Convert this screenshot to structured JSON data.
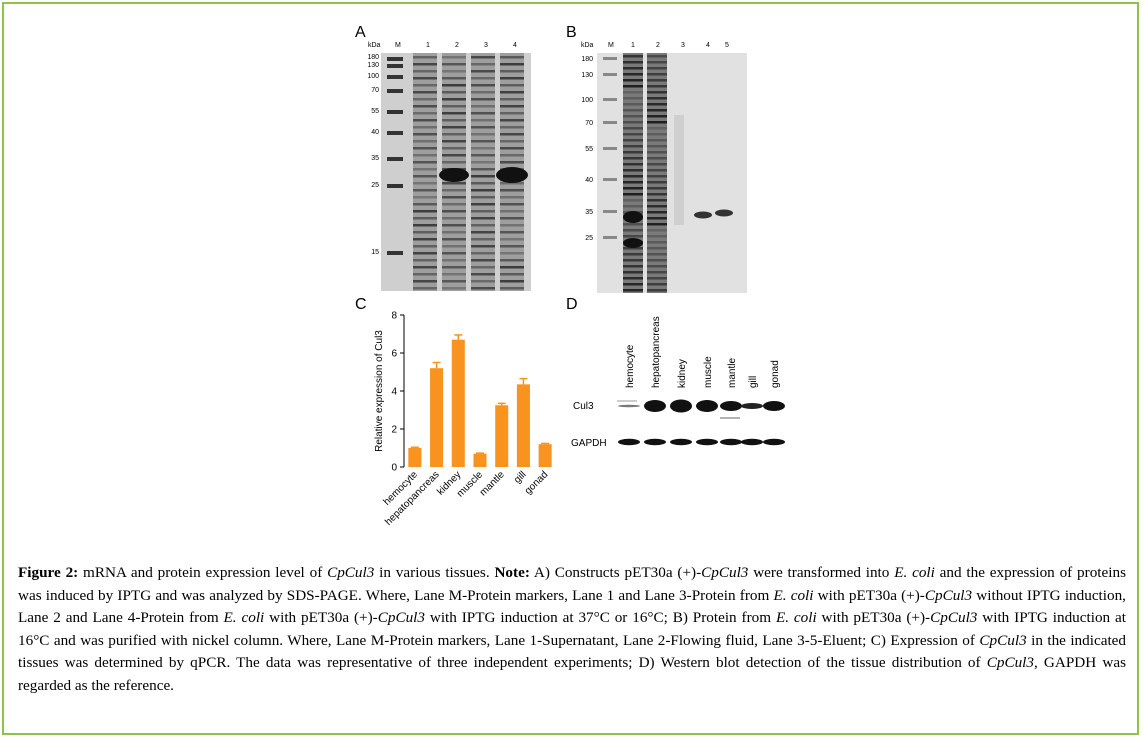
{
  "panels": {
    "a": {
      "letter": "A",
      "kda_label": "kDa",
      "marker_label": "M",
      "lanes": [
        "1",
        "2",
        "3",
        "4"
      ],
      "mw": [
        "180",
        "130",
        "100",
        "70",
        "55",
        "40",
        "35",
        "25",
        "15"
      ]
    },
    "b": {
      "letter": "B",
      "kda_label": "kDa",
      "marker_label": "M",
      "lanes": [
        "1",
        "2",
        "3",
        "4",
        "5"
      ],
      "mw": [
        "180",
        "130",
        "100",
        "70",
        "55",
        "40",
        "35",
        "25"
      ]
    },
    "c": {
      "letter": "C"
    },
    "d": {
      "letter": "D",
      "tissues": [
        "hemocyte",
        "hepatopancreas",
        "kidney",
        "muscle",
        "mantle",
        "gill",
        "gonad"
      ],
      "row_labels": [
        "Cul3",
        "GAPDH"
      ]
    }
  },
  "chart_data": {
    "type": "bar",
    "categories": [
      "hemocyte",
      "hepatopancreas",
      "kidney",
      "muscle",
      "mantle",
      "gill",
      "gonad"
    ],
    "values": [
      1.0,
      5.2,
      6.7,
      0.7,
      3.25,
      4.35,
      1.2
    ],
    "errors": [
      0.04,
      0.3,
      0.25,
      0.03,
      0.1,
      0.3,
      0.04
    ],
    "ylabel": "Relative expression of Cul3",
    "ylim": [
      0,
      8
    ],
    "yticks": [
      "0",
      "2",
      "4",
      "6",
      "8"
    ],
    "bar_color": "#f7931e",
    "grid": false
  },
  "caption": {
    "figure_label": "Figure 2:",
    "seg1": " mRNA and protein expression level of ",
    "gene1": "CpCul3",
    "seg2": " in various tissues. ",
    "note_label": "Note:",
    "seg3": " A) Constructs pET30a (+)-",
    "gene2": "CpCul3",
    "seg4": " were transformed into ",
    "ecoli1": "E. coli",
    "seg5": " and the expression of proteins was induced by IPTG and was analyzed by SDS-PAGE. Where, Lane M-Protein markers, Lane 1 and Lane 3-Protein from ",
    "ecoli2": "E. coli",
    "seg6": " with pET30a (+)-",
    "gene3": "CpCul3",
    "seg7": " without IPTG induction, Lane 2 and Lane 4-Protein from ",
    "ecoli3": "E. coli",
    "seg8": " with pET30a (+)-",
    "gene4": "CpCul3",
    "seg9": " with IPTG induction at 37°C or 16°C; B) Protein from ",
    "ecoli4": "E. coli",
    "seg10": " with pET30a (+)-",
    "gene5": "CpCul3",
    "seg11": " with IPTG induction at 16°C and was purified with nickel column. Where, Lane M-Protein markers, Lane 1-Supernatant, Lane 2-Flowing fluid, Lane 3-5-Eluent; C) Expression of ",
    "gene6": "CpCul3",
    "seg12": " in the indicated tissues was determined by qPCR. The data was representative of three independent experiments; D) Western blot detection of the tissue distribution of ",
    "gene7": "CpCul3",
    "seg13": ", GAPDH was regarded as the reference."
  }
}
